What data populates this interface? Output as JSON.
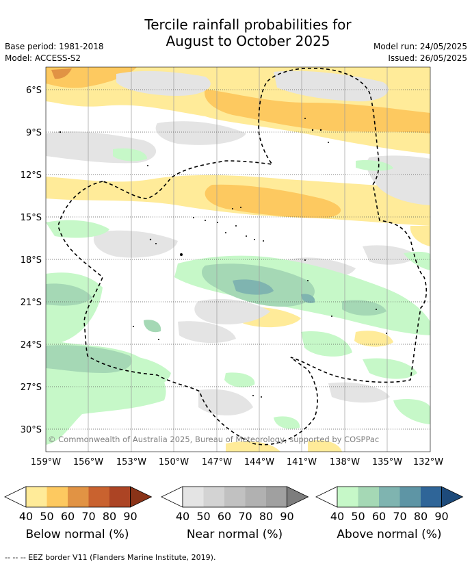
{
  "title_line1": "Tercile rainfall probabilities for",
  "title_line2": "August to October 2025",
  "base_period": "Base period: 1981-2018",
  "model": "Model: ACCESS-S2",
  "model_run": "Model run: 24/05/2025",
  "issued": "Issued: 26/05/2025",
  "copyright": "© Commonwealth of Australia 2025, Bureau of Meteorology, supported by COSPPac",
  "lat_labels": [
    "6°S",
    "9°S",
    "12°S",
    "15°S",
    "18°S",
    "21°S",
    "24°S",
    "27°S",
    "30°S"
  ],
  "lon_labels": [
    "159°W",
    "156°W",
    "153°W",
    "150°W",
    "147°W",
    "144°W",
    "141°W",
    "138°W",
    "135°W",
    "132°W"
  ],
  "legends": [
    {
      "label": "Below normal (%)",
      "ticks": [
        "40",
        "50",
        "60",
        "70",
        "80",
        "90"
      ],
      "colors": [
        "#ffeb99",
        "#fdc960",
        "#e19344",
        "#c9622f",
        "#ac4424",
        "#8a3318"
      ]
    },
    {
      "label": "Near normal (%)",
      "ticks": [
        "40",
        "50",
        "60",
        "70",
        "80",
        "90"
      ],
      "colors": [
        "#e4e4e4",
        "#d3d3d3",
        "#c1c1c1",
        "#b1b1b1",
        "#a0a0a0",
        "#7d7d7d"
      ]
    },
    {
      "label": "Above normal (%)",
      "ticks": [
        "40",
        "50",
        "60",
        "70",
        "80",
        "90"
      ],
      "colors": [
        "#c6f8c8",
        "#a5d8b5",
        "#7fb4b0",
        "#5e95a5",
        "#2f6598",
        "#1d4a7a"
      ]
    }
  ],
  "footnote": "--  --  -- EEZ border V11 (Flanders Marine Institute, 2019)."
}
